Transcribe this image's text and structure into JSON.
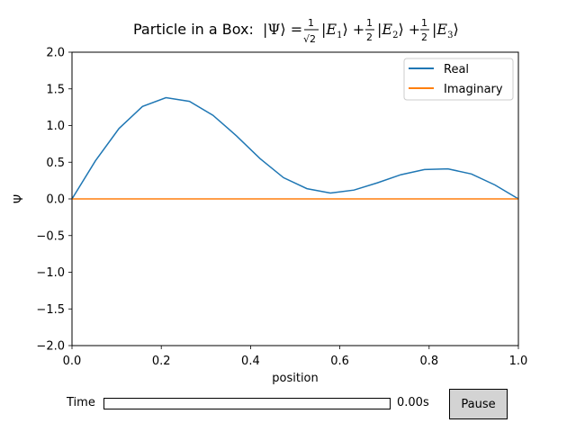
{
  "chart_data": {
    "type": "line",
    "title": "Particle in a Box: |Ψ⟩ = 1/√2|E₁⟩ + 1/2|E₂⟩ + 1/2|E₃⟩",
    "xlabel": "position",
    "ylabel": "Ψ",
    "xlim": [
      0.0,
      1.0
    ],
    "ylim": [
      -2.0,
      2.0
    ],
    "x_ticks": [
      "0.0",
      "0.2",
      "0.4",
      "0.6",
      "0.8",
      "1.0"
    ],
    "y_ticks": [
      "−2.0",
      "−1.5",
      "−1.0",
      "−0.5",
      "0.0",
      "0.5",
      "1.0",
      "1.5",
      "2.0"
    ],
    "grid": false,
    "legend_position": "top-right",
    "x": [
      0.0,
      0.0526,
      0.1053,
      0.1579,
      0.2105,
      0.2632,
      0.3158,
      0.3684,
      0.4211,
      0.4737,
      0.5263,
      0.5789,
      0.6316,
      0.6842,
      0.7368,
      0.7895,
      0.8421,
      0.8947,
      0.9474,
      1.0
    ],
    "series": [
      {
        "name": "Real",
        "color": "#1f77b4",
        "values": [
          0.0,
          0.52,
          0.96,
          1.26,
          1.38,
          1.33,
          1.14,
          0.86,
          0.55,
          0.29,
          0.14,
          0.08,
          0.12,
          0.22,
          0.33,
          0.4,
          0.41,
          0.34,
          0.19,
          0.0
        ]
      },
      {
        "name": "Imaginary",
        "color": "#ff7f0e",
        "values": [
          0.0,
          0.0,
          0.0,
          0.0,
          0.0,
          0.0,
          0.0,
          0.0,
          0.0,
          0.0,
          0.0,
          0.0,
          0.0,
          0.0,
          0.0,
          0.0,
          0.0,
          0.0,
          0.0,
          0.0
        ]
      }
    ]
  },
  "controls": {
    "time_label": "Time",
    "time_value": "0.00s",
    "time_progress": 0.0,
    "pause_label": "Pause"
  }
}
